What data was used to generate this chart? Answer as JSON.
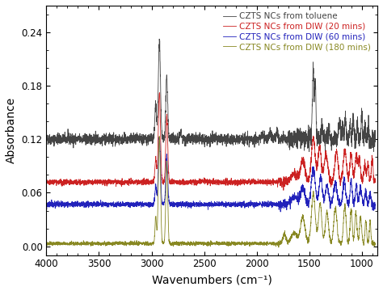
{
  "title": "",
  "xlabel": "Wavenumbers (cm⁻¹)",
  "ylabel": "Absorbance",
  "xlim": [
    4000,
    850
  ],
  "ylim": [
    -0.01,
    0.27
  ],
  "yticks": [
    0.0,
    0.06,
    0.12,
    0.18,
    0.24
  ],
  "xticks": [
    4000,
    3500,
    3000,
    2500,
    2000,
    1500,
    1000
  ],
  "legend": [
    {
      "label": "CZTS NCs from toluene",
      "color": "#444444"
    },
    {
      "label": "CZTS NCs from DIW (20 mins) ",
      "color": "#cc2222"
    },
    {
      "label": "CZTS NCs from DIW (60 mins) ",
      "color": "#2222bb"
    },
    {
      "label": "CZTS NCs from DIW (180 mins)",
      "color": "#888822"
    }
  ],
  "background_color": "#ffffff",
  "fig_width": 4.74,
  "fig_height": 3.6,
  "dpi": 100
}
